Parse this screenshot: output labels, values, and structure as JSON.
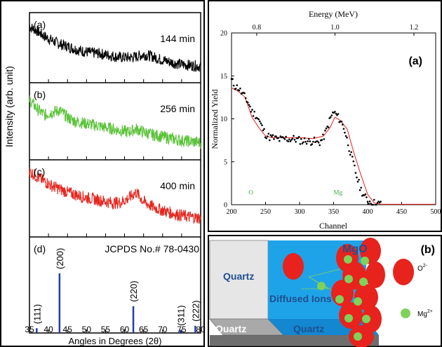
{
  "chart_data": [
    {
      "type": "line",
      "panel": "left",
      "ylabel": "Intensity (arb. unit)",
      "xlabel": "Angles in Degrees (2θ)",
      "xlim": [
        35,
        80
      ],
      "xticks": [
        "35",
        "40",
        "45",
        "50",
        "55",
        "60",
        "65",
        "70",
        "75",
        "80"
      ],
      "series": [
        {
          "name": "(a)",
          "label": "144 min",
          "color": "#000000",
          "x": [
            35,
            37,
            39,
            41,
            43,
            45,
            47,
            49,
            51,
            53,
            55,
            57,
            59,
            61,
            63,
            65,
            67,
            69,
            71,
            73,
            75,
            77,
            79,
            80
          ],
          "y": [
            0.8,
            0.74,
            0.66,
            0.6,
            0.55,
            0.52,
            0.48,
            0.45,
            0.43,
            0.42,
            0.4,
            0.38,
            0.36,
            0.36,
            0.37,
            0.4,
            0.38,
            0.34,
            0.31,
            0.28,
            0.26,
            0.25,
            0.24,
            0.23
          ]
        },
        {
          "name": "(b)",
          "label": "256 min",
          "color": "#5cc33b",
          "x": [
            35,
            37,
            39,
            41,
            43,
            45,
            47,
            49,
            51,
            53,
            55,
            57,
            59,
            61,
            63,
            65,
            67,
            69,
            71,
            73,
            75,
            77,
            79,
            80
          ],
          "y": [
            0.78,
            0.66,
            0.58,
            0.62,
            0.64,
            0.55,
            0.5,
            0.48,
            0.46,
            0.44,
            0.42,
            0.4,
            0.38,
            0.36,
            0.4,
            0.36,
            0.33,
            0.31,
            0.29,
            0.27,
            0.25,
            0.24,
            0.23,
            0.22
          ]
        },
        {
          "name": "(c)",
          "label": "400 min",
          "color": "#e5261f",
          "x": [
            35,
            37,
            39,
            41,
            43,
            45,
            47,
            49,
            51,
            53,
            55,
            57,
            59,
            61,
            63,
            65,
            67,
            69,
            71,
            73,
            75,
            77,
            79,
            80
          ],
          "y": [
            0.85,
            0.78,
            0.72,
            0.66,
            0.62,
            0.58,
            0.55,
            0.52,
            0.5,
            0.48,
            0.46,
            0.44,
            0.45,
            0.5,
            0.58,
            0.46,
            0.4,
            0.36,
            0.33,
            0.3,
            0.28,
            0.26,
            0.25,
            0.24
          ]
        }
      ],
      "reference": {
        "name": "(d)",
        "label": "JCPDS No.# 78-0430",
        "color": "#1f3fa8",
        "peaks": [
          {
            "x": 36.9,
            "rel": 0.08,
            "hkl": "(111)"
          },
          {
            "x": 42.9,
            "rel": 1.0,
            "hkl": "(200)"
          },
          {
            "x": 62.3,
            "rel": 0.45,
            "hkl": "(220)"
          },
          {
            "x": 74.7,
            "rel": 0.05,
            "hkl": "(311)"
          },
          {
            "x": 78.6,
            "rel": 0.12,
            "hkl": "(222)"
          }
        ]
      }
    },
    {
      "type": "scatter",
      "panel": "top-right",
      "panel_label": "(a)",
      "ylabel": "Normalized Yield",
      "xlabel": "Channel",
      "top_axis_label": "Energy (MeV)",
      "xlim": [
        200,
        500
      ],
      "ylim": [
        0,
        20
      ],
      "xticks": [
        "200",
        "250",
        "300",
        "350",
        "400",
        "450",
        "500"
      ],
      "yticks": [
        "0",
        "5",
        "10",
        "15",
        "20"
      ],
      "top_ticks": [
        "0.8",
        "1.0",
        "1.2"
      ],
      "top_tick_channels": [
        237,
        352,
        468
      ],
      "annotations": [
        {
          "text": "O",
          "x": 225,
          "y": 1.2
        },
        {
          "text": "Mg",
          "x": 350,
          "y": 1.2
        }
      ],
      "data_x": [
        200,
        205,
        210,
        215,
        220,
        225,
        230,
        235,
        240,
        245,
        250,
        255,
        260,
        265,
        270,
        275,
        280,
        285,
        290,
        295,
        300,
        305,
        310,
        315,
        320,
        325,
        330,
        335,
        340,
        345,
        350,
        355,
        360,
        365,
        370,
        375,
        380,
        385,
        390,
        395,
        400,
        405,
        410,
        415,
        420
      ],
      "data_y": [
        14.5,
        13.8,
        13.6,
        13.0,
        12.5,
        11.8,
        10.8,
        10.5,
        9.9,
        9.0,
        8.2,
        7.9,
        7.8,
        7.7,
        7.6,
        7.6,
        7.7,
        7.6,
        7.7,
        7.6,
        7.5,
        7.4,
        7.5,
        7.3,
        7.5,
        7.2,
        7.3,
        7.8,
        8.8,
        10.0,
        10.8,
        10.4,
        9.8,
        9.0,
        7.5,
        6.0,
        4.5,
        3.0,
        1.8,
        1.0,
        0.5,
        0.3,
        0.2,
        0.1,
        0.1
      ],
      "fit_x": [
        200,
        210,
        220,
        230,
        240,
        250,
        260,
        270,
        280,
        300,
        320,
        335,
        345,
        352,
        360,
        370,
        380,
        390,
        400,
        410,
        420,
        500
      ],
      "fit_y": [
        13.6,
        13.2,
        12.5,
        10.2,
        9.0,
        8.0,
        7.8,
        7.8,
        7.8,
        7.8,
        7.7,
        8.0,
        9.0,
        10.2,
        9.8,
        8.8,
        6.0,
        3.5,
        1.2,
        0.2,
        0.05,
        0.05
      ]
    }
  ],
  "diagram": {
    "panel_label": "(b)",
    "quartz_left": "Quartz",
    "quartz_bottom": "Quartz",
    "quartz_bottom_right": "Quartz",
    "mgo_label": "MgO",
    "diffused_label": "Diffused Ions",
    "o_ion_label": "O",
    "o_charge": "2-",
    "mg_ion_label": "Mg",
    "mg_charge": "2+",
    "quartz_blue": "#1fa3e8",
    "ion_red": "#e8221c",
    "ion_green": "#7fd15a"
  }
}
